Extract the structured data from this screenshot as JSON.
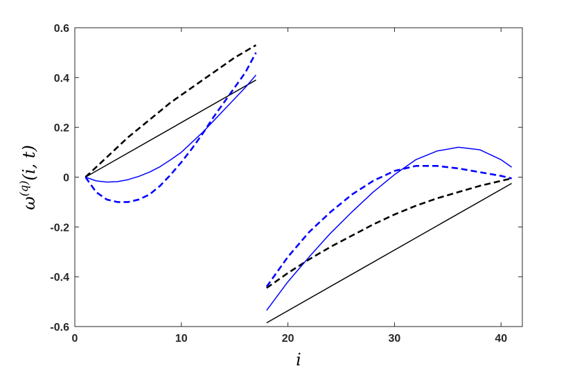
{
  "chart_data": {
    "type": "line",
    "xlabel": "i",
    "ylabel": "ω(q)(i, t)",
    "ylabel_parts": {
      "base": "ω",
      "sup": "(q)",
      "args": "(i, t)"
    },
    "xlim": [
      0,
      42
    ],
    "ylim": [
      -0.6,
      0.6
    ],
    "xticks": [
      0,
      10,
      20,
      30,
      40
    ],
    "yticks": [
      -0.6,
      -0.4,
      -0.2,
      0,
      0.2,
      0.4,
      0.6
    ],
    "xtick_labels": [
      "0",
      "10",
      "20",
      "30",
      "40"
    ],
    "ytick_labels": [
      "-0.6",
      "-0.4",
      "-0.2",
      "0",
      "0.2",
      "0.4",
      "0.6"
    ],
    "grid": false,
    "series": [
      {
        "color": "#000000",
        "dash": "solid",
        "x": [
          1,
          17
        ],
        "y": [
          0,
          0.39
        ]
      },
      {
        "color": "#000000",
        "dash": "dashed",
        "x": [
          1,
          3,
          5,
          7,
          9,
          11,
          13,
          15,
          17
        ],
        "y": [
          0,
          0.08,
          0.16,
          0.23,
          0.3,
          0.36,
          0.42,
          0.48,
          0.53
        ]
      },
      {
        "color": "#0000ff",
        "dash": "solid",
        "x": [
          1,
          2,
          3,
          4,
          5,
          6,
          7,
          8,
          9,
          10,
          11,
          12,
          13,
          14,
          15,
          16,
          17
        ],
        "y": [
          0,
          -0.015,
          -0.02,
          -0.018,
          -0.01,
          0.003,
          0.02,
          0.042,
          0.07,
          0.1,
          0.14,
          0.18,
          0.225,
          0.27,
          0.315,
          0.36,
          0.41
        ]
      },
      {
        "color": "#0000ff",
        "dash": "dashed",
        "x": [
          1,
          2,
          3,
          4,
          5,
          6,
          7,
          8,
          9,
          10,
          11,
          12,
          13,
          14,
          15,
          16,
          17
        ],
        "y": [
          0,
          -0.06,
          -0.09,
          -0.1,
          -0.1,
          -0.09,
          -0.07,
          -0.035,
          0.01,
          0.06,
          0.115,
          0.175,
          0.24,
          0.3,
          0.36,
          0.42,
          0.5
        ]
      },
      {
        "color": "#000000",
        "dash": "solid",
        "x": [
          18,
          41
        ],
        "y": [
          -0.585,
          -0.025
        ]
      },
      {
        "color": "#000000",
        "dash": "dashed",
        "x": [
          18,
          20,
          22,
          24,
          26,
          28,
          30,
          32,
          34,
          36,
          38,
          40,
          41
        ],
        "y": [
          -0.445,
          -0.385,
          -0.33,
          -0.28,
          -0.235,
          -0.19,
          -0.15,
          -0.115,
          -0.085,
          -0.06,
          -0.035,
          -0.015,
          -0.005
        ]
      },
      {
        "color": "#0000ff",
        "dash": "solid",
        "x": [
          18,
          20,
          22,
          24,
          26,
          28,
          30,
          32,
          34,
          36,
          38,
          40,
          41
        ],
        "y": [
          -0.535,
          -0.42,
          -0.32,
          -0.225,
          -0.14,
          -0.06,
          0.01,
          0.07,
          0.105,
          0.12,
          0.11,
          0.07,
          0.04
        ]
      },
      {
        "color": "#0000ff",
        "dash": "dashed",
        "x": [
          18,
          20,
          22,
          24,
          26,
          28,
          30,
          32,
          34,
          36,
          38,
          40,
          41
        ],
        "y": [
          -0.44,
          -0.32,
          -0.22,
          -0.14,
          -0.07,
          -0.015,
          0.025,
          0.045,
          0.045,
          0.035,
          0.02,
          0.005,
          -0.005
        ]
      }
    ]
  }
}
